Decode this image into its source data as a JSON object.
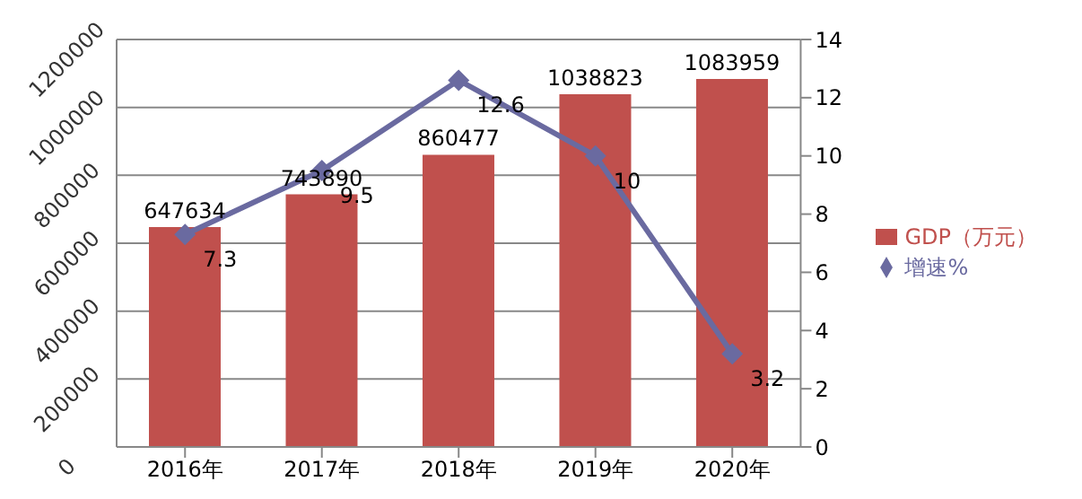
{
  "chart_data": {
    "type": "bar",
    "categories": [
      "2016年",
      "2017年",
      "2018年",
      "2019年",
      "2020年"
    ],
    "series": [
      {
        "name": "GDP（万元）",
        "color": "#c0504d",
        "values": [
          647634,
          743890,
          860477,
          1038823,
          1083959
        ]
      },
      {
        "name": "增速%",
        "type": "line",
        "axis": "y2",
        "color": "#6a6aa0",
        "values": [
          7.3,
          9.5,
          12.6,
          10,
          3.2
        ]
      }
    ],
    "ylim": [
      0,
      1200000
    ],
    "yticks": [
      0,
      200000,
      400000,
      600000,
      800000,
      1000000,
      1200000
    ],
    "y2lim": [
      0,
      14
    ],
    "y2ticks": [
      0,
      2,
      4,
      6,
      8,
      10,
      12,
      14
    ],
    "grid": "y",
    "legend": "right",
    "marker": "diamond",
    "data_labels": true
  }
}
